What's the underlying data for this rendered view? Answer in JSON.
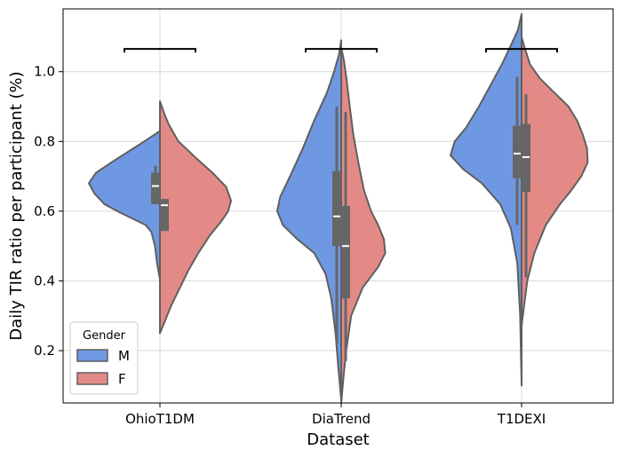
{
  "chart_data": {
    "type": "violin",
    "split": true,
    "xlabel": "Dataset",
    "ylabel": "Daily TIR ratio per participant (%)",
    "ylim": [
      0.05,
      1.18
    ],
    "yticks": [
      0.2,
      0.4,
      0.6,
      0.8,
      1.0
    ],
    "ytick_labels": [
      "0.2",
      "0.4",
      "0.6",
      "0.8",
      "1.0"
    ],
    "grid": true,
    "categories": [
      "OhioT1DM",
      "DiaTrend",
      "T1DEXI"
    ],
    "legend": {
      "title": "Gender",
      "position": "lower-left",
      "entries": [
        {
          "label": "M",
          "color": "#6f98e3"
        },
        {
          "label": "F",
          "color": "#e48a86"
        }
      ]
    },
    "significance_brackets_y": 1.065,
    "series": [
      {
        "name": "M",
        "color": "#6f98e3",
        "side": "left",
        "groups": [
          {
            "category": "OhioT1DM",
            "profile": [
              [
                0.405,
                0.0
              ],
              [
                0.45,
                0.04
              ],
              [
                0.5,
                0.07
              ],
              [
                0.54,
                0.12
              ],
              [
                0.56,
                0.2
              ],
              [
                0.58,
                0.4
              ],
              [
                0.6,
                0.6
              ],
              [
                0.62,
                0.78
              ],
              [
                0.65,
                0.92
              ],
              [
                0.68,
                1.0
              ],
              [
                0.71,
                0.9
              ],
              [
                0.74,
                0.68
              ],
              [
                0.77,
                0.45
              ],
              [
                0.8,
                0.22
              ],
              [
                0.83,
                0.0
              ]
            ],
            "box": {
              "q1": 0.62,
              "median": 0.672,
              "q3": 0.71,
              "whisker_low": 0.62,
              "whisker_high": 0.73
            }
          },
          {
            "category": "DiaTrend",
            "profile": [
              [
                0.06,
                0.0
              ],
              [
                0.15,
                0.04
              ],
              [
                0.25,
                0.08
              ],
              [
                0.35,
                0.14
              ],
              [
                0.42,
                0.22
              ],
              [
                0.48,
                0.38
              ],
              [
                0.52,
                0.62
              ],
              [
                0.56,
                0.82
              ],
              [
                0.6,
                0.9
              ],
              [
                0.64,
                0.86
              ],
              [
                0.7,
                0.72
              ],
              [
                0.78,
                0.54
              ],
              [
                0.86,
                0.38
              ],
              [
                0.94,
                0.2
              ],
              [
                1.0,
                0.1
              ],
              [
                1.05,
                0.03
              ],
              [
                1.09,
                0.0
              ]
            ],
            "box": {
              "q1": 0.5,
              "median": 0.585,
              "q3": 0.715,
              "whisker_low": 0.22,
              "whisker_high": 0.9
            }
          },
          {
            "category": "T1DEXI",
            "profile": [
              [
                0.1,
                0.0
              ],
              [
                0.3,
                0.02
              ],
              [
                0.45,
                0.06
              ],
              [
                0.55,
                0.15
              ],
              [
                0.62,
                0.3
              ],
              [
                0.68,
                0.56
              ],
              [
                0.72,
                0.82
              ],
              [
                0.76,
                1.0
              ],
              [
                0.8,
                0.94
              ],
              [
                0.84,
                0.78
              ],
              [
                0.9,
                0.6
              ],
              [
                0.96,
                0.44
              ],
              [
                1.02,
                0.28
              ],
              [
                1.08,
                0.14
              ],
              [
                1.12,
                0.05
              ],
              [
                1.165,
                0.0
              ]
            ],
            "box": {
              "q1": 0.695,
              "median": 0.765,
              "q3": 0.845,
              "whisker_low": 0.56,
              "whisker_high": 0.985
            }
          }
        ]
      },
      {
        "name": "F",
        "color": "#e48a86",
        "side": "right",
        "groups": [
          {
            "category": "OhioT1DM",
            "profile": [
              [
                0.25,
                0.0
              ],
              [
                0.28,
                0.06
              ],
              [
                0.33,
                0.16
              ],
              [
                0.38,
                0.28
              ],
              [
                0.43,
                0.4
              ],
              [
                0.48,
                0.54
              ],
              [
                0.53,
                0.7
              ],
              [
                0.57,
                0.86
              ],
              [
                0.6,
                0.96
              ],
              [
                0.63,
                1.0
              ],
              [
                0.67,
                0.93
              ],
              [
                0.71,
                0.74
              ],
              [
                0.75,
                0.52
              ],
              [
                0.8,
                0.26
              ],
              [
                0.85,
                0.12
              ],
              [
                0.88,
                0.06
              ],
              [
                0.915,
                0.0
              ]
            ],
            "box": {
              "q1": 0.543,
              "median": 0.617,
              "q3": 0.635,
              "whisker_low": 0.543,
              "whisker_high": 0.635
            }
          },
          {
            "category": "DiaTrend",
            "profile": [
              [
                0.05,
                0.0
              ],
              [
                0.12,
                0.03
              ],
              [
                0.2,
                0.07
              ],
              [
                0.3,
                0.14
              ],
              [
                0.38,
                0.3
              ],
              [
                0.44,
                0.52
              ],
              [
                0.48,
                0.62
              ],
              [
                0.52,
                0.6
              ],
              [
                0.56,
                0.52
              ],
              [
                0.6,
                0.42
              ],
              [
                0.66,
                0.32
              ],
              [
                0.74,
                0.24
              ],
              [
                0.82,
                0.17
              ],
              [
                0.9,
                0.12
              ],
              [
                0.97,
                0.08
              ],
              [
                1.03,
                0.04
              ],
              [
                1.07,
                0.0
              ]
            ],
            "box": {
              "q1": 0.35,
              "median": 0.5,
              "q3": 0.615,
              "whisker_low": 0.17,
              "whisker_high": 0.885
            }
          },
          {
            "category": "T1DEXI",
            "profile": [
              [
                0.27,
                0.0
              ],
              [
                0.32,
                0.03
              ],
              [
                0.4,
                0.08
              ],
              [
                0.48,
                0.18
              ],
              [
                0.56,
                0.34
              ],
              [
                0.62,
                0.54
              ],
              [
                0.66,
                0.7
              ],
              [
                0.7,
                0.84
              ],
              [
                0.74,
                0.93
              ],
              [
                0.78,
                0.92
              ],
              [
                0.82,
                0.86
              ],
              [
                0.86,
                0.78
              ],
              [
                0.9,
                0.66
              ],
              [
                0.94,
                0.46
              ],
              [
                0.98,
                0.26
              ],
              [
                1.02,
                0.12
              ],
              [
                1.07,
                0.04
              ],
              [
                1.1,
                0.0
              ]
            ],
            "box": {
              "q1": 0.655,
              "median": 0.755,
              "q3": 0.85,
              "whisker_low": 0.41,
              "whisker_high": 0.935
            }
          }
        ]
      }
    ]
  }
}
